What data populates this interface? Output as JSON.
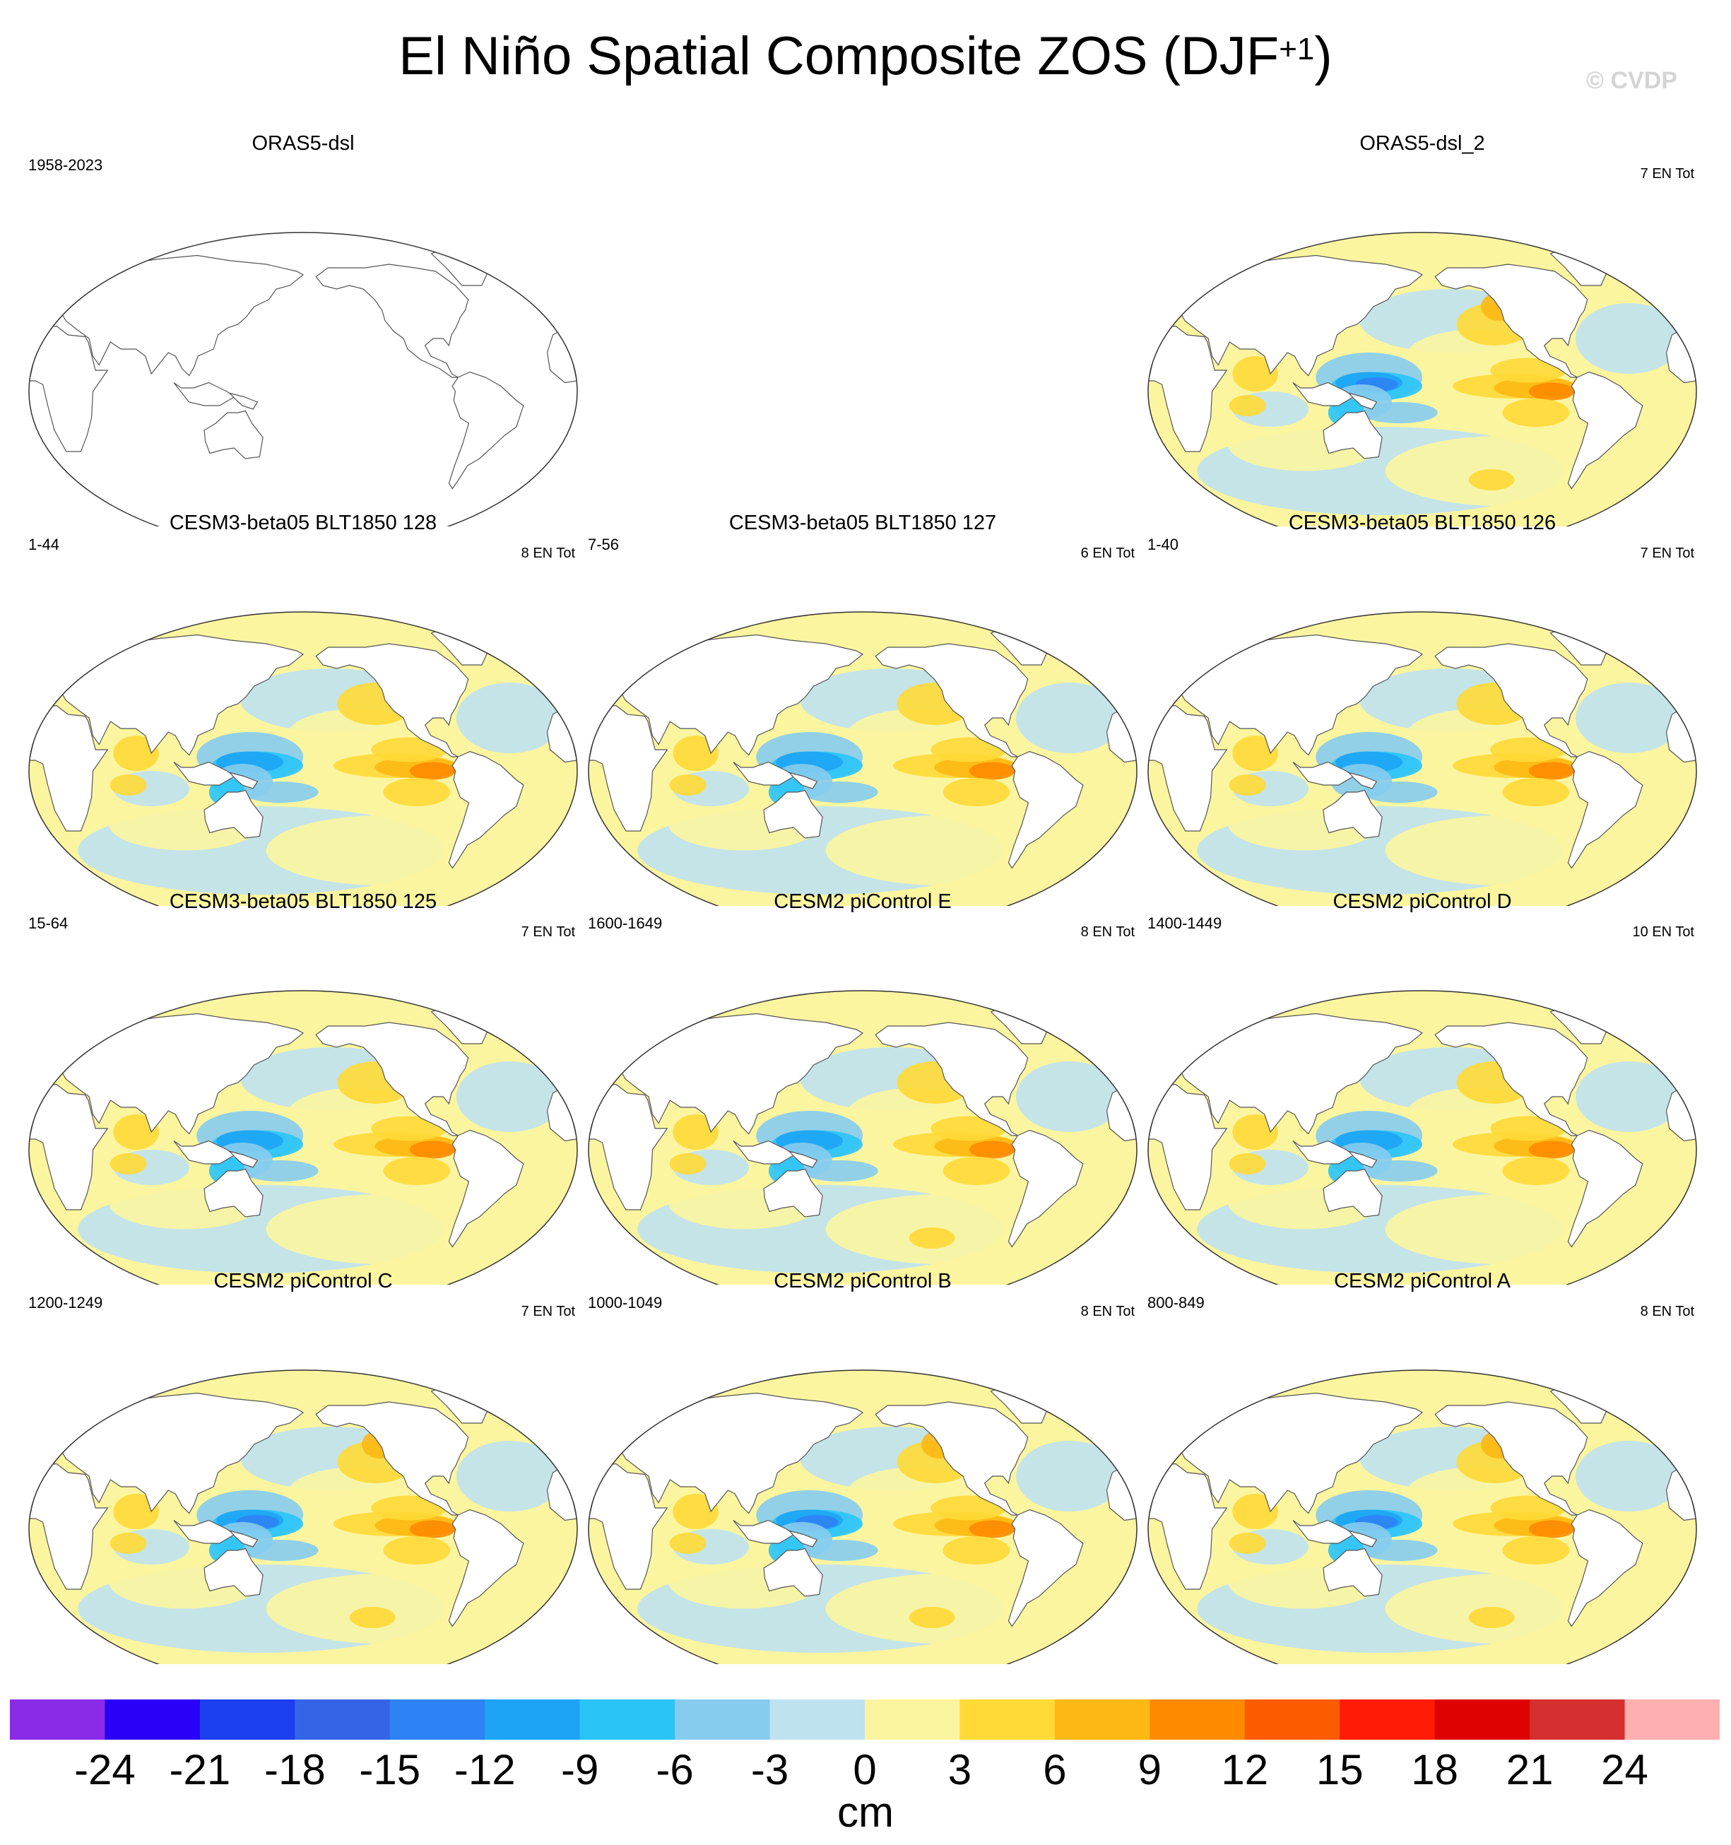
{
  "figure": {
    "title_main": "El Niño Spatial Composite ZOS (DJF",
    "title_sup": "+1",
    "title_close": ")",
    "copyright": "© CVDP"
  },
  "panels": [
    {
      "title": "ORAS5-dsl",
      "years": "1958-2023",
      "count": "",
      "empty": true,
      "intensity": 0
    },
    {
      "title": "ORAS5-dsl_2",
      "years": "",
      "count": "7 EN Tot",
      "empty": false,
      "intensity": 1.0
    },
    {
      "title": "CESM3-beta05 BLT1850 128",
      "years": "1-44",
      "count": "8 EN Tot",
      "empty": false,
      "intensity": 0.75
    },
    {
      "title": "CESM3-beta05 BLT1850 127",
      "years": "7-56",
      "count": "6 EN Tot",
      "empty": false,
      "intensity": 0.7
    },
    {
      "title": "CESM3-beta05 BLT1850 126",
      "years": "1-40",
      "count": "7 EN Tot",
      "empty": false,
      "intensity": 0.65
    },
    {
      "title": "CESM3-beta05 BLT1850 125",
      "years": "15-64",
      "count": "7 EN Tot",
      "empty": false,
      "intensity": 0.7
    },
    {
      "title": "CESM2 piControl E",
      "years": "1600-1649",
      "count": "8 EN Tot",
      "empty": false,
      "intensity": 0.8
    },
    {
      "title": "CESM2 piControl D",
      "years": "1400-1449",
      "count": "10 EN Tot",
      "empty": false,
      "intensity": 0.75
    },
    {
      "title": "CESM2 piControl C",
      "years": "1200-1249",
      "count": "7 EN Tot",
      "empty": false,
      "intensity": 0.95
    },
    {
      "title": "CESM2 piControl B",
      "years": "1000-1049",
      "count": "8 EN Tot",
      "empty": false,
      "intensity": 0.95
    },
    {
      "title": "CESM2 piControl A",
      "years": "800-849",
      "count": "8 EN Tot",
      "empty": false,
      "intensity": 0.85
    }
  ],
  "colorbar": {
    "unit": "cm",
    "labels": [
      "-24",
      "-21",
      "-18",
      "-15",
      "-12",
      "-9",
      "-6",
      "-3",
      "0",
      "3",
      "6",
      "9",
      "12",
      "15",
      "18",
      "21",
      "24"
    ],
    "colors": [
      "#8a2be8",
      "#2a00f6",
      "#1c3ff0",
      "#3565e6",
      "#2d82f4",
      "#1da4f5",
      "#2ac4f7",
      "#86ccee",
      "#bfe2f0",
      "#fbf5a0",
      "#ffd936",
      "#fdb813",
      "#fe8a00",
      "#fd5b00",
      "#fe1c06",
      "#de0202",
      "#d62f2f",
      "#feb0b0"
    ]
  },
  "map_colors": {
    "neg_light": "#bfe2f0",
    "neg_mid": "#86ccee",
    "neg_strong": "#2ac4f7",
    "neg_deep": "#1da4f5",
    "neg_core": "#2d82f4",
    "pos_light": "#fbf5a0",
    "pos_mid": "#ffd936",
    "pos_strong": "#fdb813",
    "pos_deep": "#fe8a00",
    "land": "#ffffff",
    "coast": "#555555"
  }
}
